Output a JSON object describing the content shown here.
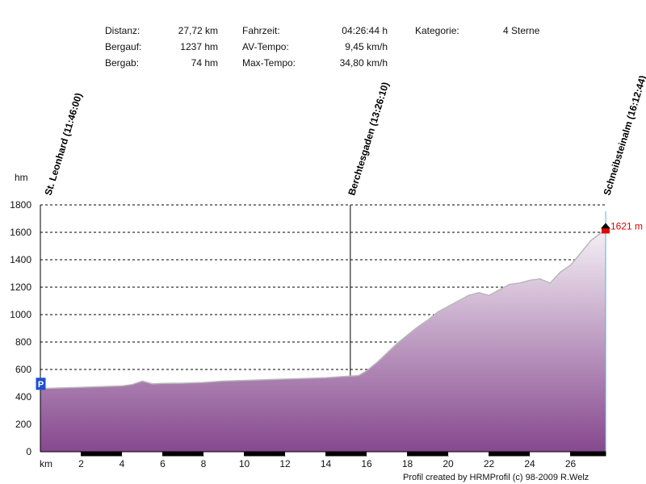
{
  "stats": {
    "distanz_label": "Distanz:",
    "distanz_value": "27,72 km",
    "bergauf_label": "Bergauf:",
    "bergauf_value": "1237 hm",
    "bergab_label": "Bergab:",
    "bergab_value": "74 hm",
    "fahrzeit_label": "Fahrzeit:",
    "fahrzeit_value": "04:26:44 h",
    "avtempo_label": "AV-Tempo:",
    "avtempo_value": "9,45 km/h",
    "maxtempo_label": "Max-Tempo:",
    "maxtempo_value": "34,80 km/h",
    "kategorie_label": "Kategorie:",
    "kategorie_value": "4 Sterne"
  },
  "footer": "Profil created by HRMProfil (c) 98-2009 R.Welz",
  "colors": {
    "fill_top": "#f5f0f6",
    "fill_bottom": "#86488e",
    "profile_line": "#b8b8b8",
    "marker_red": "#e00000",
    "start_marker": "#1f4fd0"
  },
  "chart_data": {
    "type": "area",
    "xlabel": "km",
    "ylabel": "hm",
    "xlim": [
      0,
      27.72
    ],
    "ylim": [
      0,
      1800
    ],
    "x_ticks": [
      2,
      4,
      6,
      8,
      10,
      12,
      14,
      16,
      18,
      20,
      22,
      24,
      26
    ],
    "y_ticks": [
      0,
      200,
      400,
      600,
      800,
      1000,
      1200,
      1400,
      1600,
      1800
    ],
    "grid": "horizontal-dashed",
    "series": [
      {
        "x": [
          0,
          1,
          2,
          3,
          4,
          4.5,
          5,
          5.5,
          6,
          7,
          8,
          9,
          10,
          11,
          12,
          13,
          14,
          15,
          15.6,
          16,
          16.5,
          17,
          17.5,
          18,
          18.5,
          19,
          19.5,
          20,
          20.5,
          21,
          21.5,
          22,
          22.5,
          23,
          23.5,
          24,
          24.5,
          25,
          25.5,
          26,
          26.5,
          27,
          27.72
        ],
        "y": [
          460,
          465,
          470,
          475,
          480,
          490,
          515,
          495,
          498,
          500,
          505,
          515,
          520,
          525,
          530,
          535,
          540,
          550,
          555,
          590,
          650,
          720,
          790,
          850,
          910,
          960,
          1020,
          1060,
          1100,
          1140,
          1160,
          1140,
          1180,
          1220,
          1230,
          1250,
          1260,
          1230,
          1310,
          1360,
          1450,
          1540,
          1621
        ]
      }
    ],
    "waypoints": [
      {
        "label": "St. Leonhard (11:46:00)",
        "km": 0
      },
      {
        "label": "Berchtesgaden (13:26:10)",
        "km": 15.2
      },
      {
        "label": "Schneibsteinalm (16:12:44)",
        "km": 27.72
      }
    ],
    "end_annotation": "1621 m",
    "start_symbol": "P"
  }
}
